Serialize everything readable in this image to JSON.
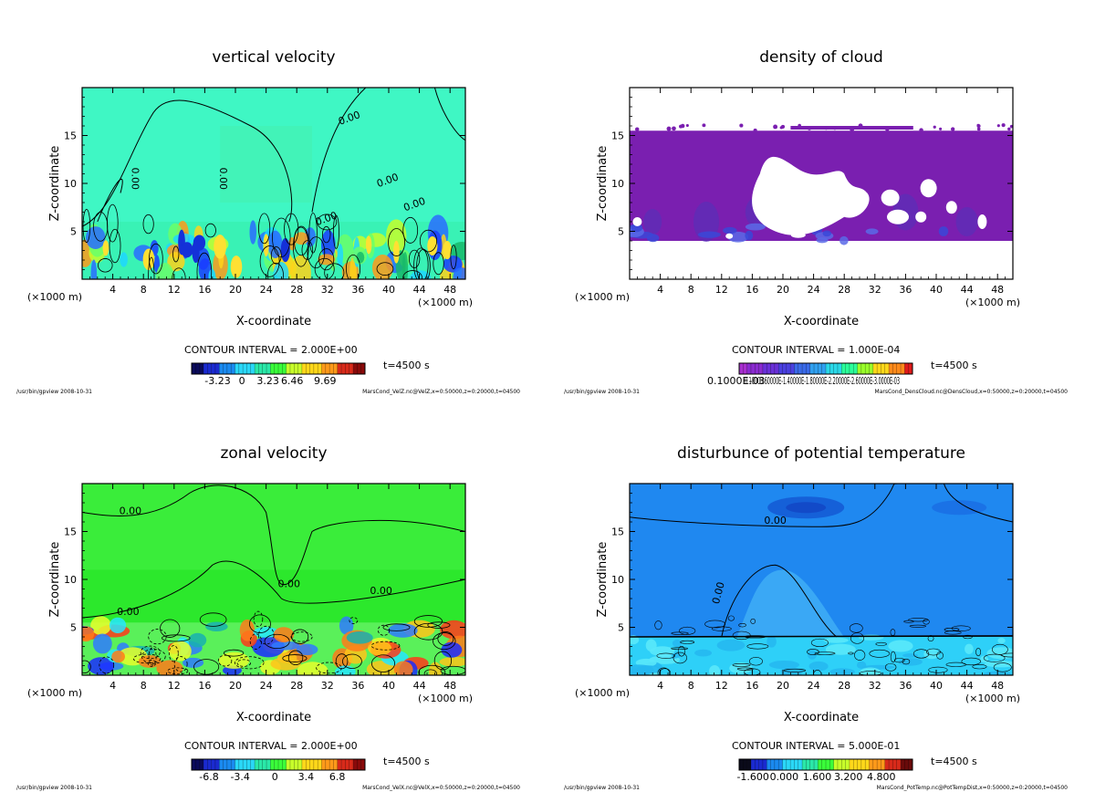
{
  "chart_data": [
    {
      "type": "heatmap",
      "title": "vertical velocity",
      "xlabel": "X-coordinate",
      "ylabel": "Z-coordinate",
      "x_unit_left": "(×1000 m)",
      "x_unit_right": "(×1000 m)",
      "xlim": [
        0,
        50
      ],
      "ylim": [
        0,
        20
      ],
      "x_ticks": [
        4,
        8,
        12,
        16,
        20,
        24,
        28,
        32,
        36,
        40,
        44,
        48
      ],
      "y_ticks": [
        5,
        10,
        15
      ],
      "contour_labels": [
        "0.00",
        "0.00",
        "0.00",
        "0.00",
        "0.00",
        "0.00"
      ],
      "contour_interval": "CONTOUR INTERVAL = 2.000E+00",
      "colorbar_ticks": [
        "-3.23",
        "0",
        "3.23",
        "6.46",
        "9.69"
      ],
      "colorbar_palette": "rainbow",
      "time": "t=4500 s",
      "footer_left": "/usr/bin/gpview   2008-10-31",
      "footer_right": "MarsCond_VelZ.nc@VelZ,x=0:50000,z=0:20000,t=04500"
    },
    {
      "type": "heatmap",
      "title": "density of cloud",
      "xlabel": "X-coordinate",
      "ylabel": "Z-coordinate",
      "x_unit_left": "(×1000 m)",
      "x_unit_right": "(×1000 m)",
      "xlim": [
        0,
        50
      ],
      "ylim": [
        0,
        20
      ],
      "x_ticks": [
        4,
        8,
        12,
        16,
        20,
        24,
        28,
        32,
        36,
        40,
        44,
        48
      ],
      "y_ticks": [
        5,
        10,
        15
      ],
      "contour_labels": [],
      "contour_interval": "CONTOUR INTERVAL = 1.000E-04",
      "colorbar_ticks": [
        "0.1000E-03"
      ],
      "colorbar_overlap_text": "0.10000.60000E-1.40000E-1.80000E-2.20000E-2.60000E-3.0000E-03",
      "colorbar_palette": "purple",
      "time": "t=4500 s",
      "footer_left": "/usr/bin/gpview   2008-10-31",
      "footer_right": "MarsCond_DensCloud.nc@DensCloud,x=0:50000,z=0:20000,t=04500"
    },
    {
      "type": "heatmap",
      "title": "zonal velocity",
      "xlabel": "X-coordinate",
      "ylabel": "Z-coordinate",
      "x_unit_left": "(×1000 m)",
      "x_unit_right": "(×1000 m)",
      "xlim": [
        0,
        50
      ],
      "ylim": [
        0,
        20
      ],
      "x_ticks": [
        4,
        8,
        12,
        16,
        20,
        24,
        28,
        32,
        36,
        40,
        44,
        48
      ],
      "y_ticks": [
        5,
        10,
        15
      ],
      "contour_labels": [
        "0.00",
        "0.00",
        "0.00",
        "0.00"
      ],
      "contour_interval": "CONTOUR INTERVAL = 2.000E+00",
      "colorbar_ticks": [
        "-6.8",
        "-3.4",
        "0",
        "3.4",
        "6.8"
      ],
      "colorbar_palette": "rainbow",
      "time": "t=4500 s",
      "footer_left": "/usr/bin/gpview   2008-10-31",
      "footer_right": "MarsCond_VelX.nc@VelX,x=0:50000,z=0:20000,t=04500"
    },
    {
      "type": "heatmap",
      "title": "disturbunce of potential temperature",
      "xlabel": "X-coordinate",
      "ylabel": "Z-coordinate",
      "x_unit_left": "(×1000 m)",
      "x_unit_right": "(×1000 m)",
      "xlim": [
        0,
        50
      ],
      "ylim": [
        0,
        20
      ],
      "x_ticks": [
        4,
        8,
        12,
        16,
        20,
        24,
        28,
        32,
        36,
        40,
        44,
        48
      ],
      "y_ticks": [
        5,
        10,
        15
      ],
      "contour_labels": [
        "0.00",
        "0.00"
      ],
      "contour_interval": "CONTOUR INTERVAL = 5.000E-01",
      "colorbar_ticks": [
        "-1.600",
        "0.000",
        "1.600",
        "3.200",
        "4.800"
      ],
      "colorbar_palette": "rainbow-dark",
      "time": "t=4500 s",
      "footer_left": "/usr/bin/gpview   2008-10-31",
      "footer_right": "MarsCond_PotTemp.nc@PotTempDist,x=0:50000,z=0:20000,t=04500"
    }
  ]
}
